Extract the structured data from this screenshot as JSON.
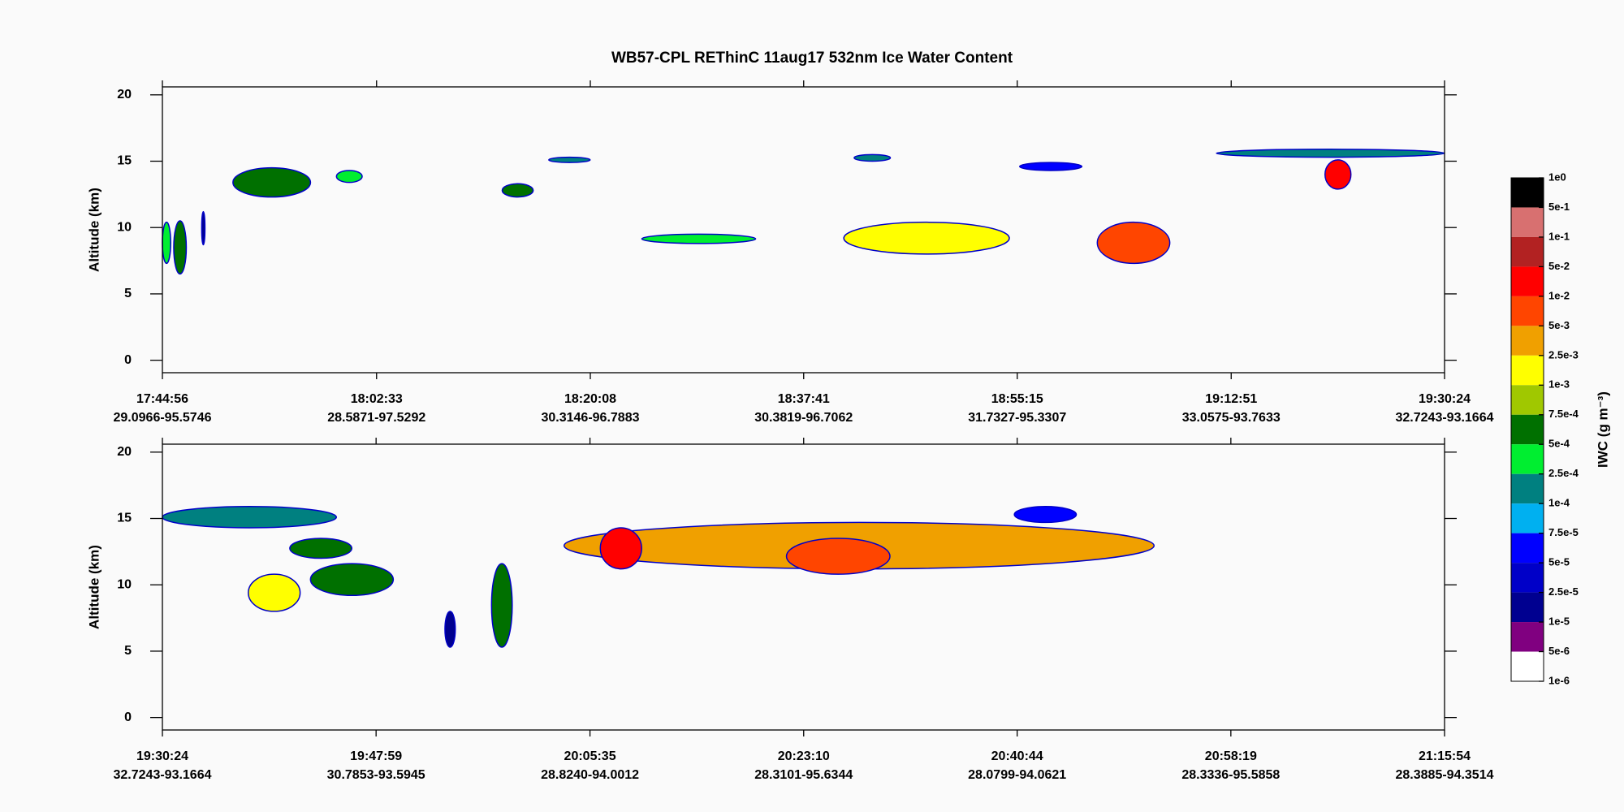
{
  "chart_data": [
    {
      "type": "curtain",
      "title": "WB57-CPL  REThinC  11aug17  532nm Ice Water Content",
      "ylabel": "Altitude (km)",
      "ylim": [
        -0.94,
        20.6
      ],
      "yticks": [
        0,
        5,
        10,
        15,
        20
      ],
      "xlim": [
        63896,
        70224
      ],
      "xticks": [
        {
          "value": 63896,
          "label": "17:44:56"
        },
        {
          "value": 64953,
          "label": "18:02:33"
        },
        {
          "value": 66008,
          "label": "18:20:08"
        },
        {
          "value": 67061,
          "label": "18:37:41"
        },
        {
          "value": 68115,
          "label": "18:55:15"
        },
        {
          "value": 69171,
          "label": "19:12:51"
        },
        {
          "value": 70224,
          "label": "19:30:24"
        }
      ],
      "xtick_sublabels": [
        "29.0966-95.5746",
        "28.5871-97.5292",
        "30.3146-96.7883",
        "30.3819-96.7062",
        "31.7327-95.3307",
        "33.0575-93.7633",
        "32.7243-93.1664"
      ],
      "patches": [
        {
          "x": [
            63896,
            63937
          ],
          "y": [
            7.3,
            10.4
          ],
          "iwc": 0.00025
        },
        {
          "x": [
            63952,
            64014
          ],
          "y": [
            6.5,
            10.5
          ],
          "iwc": 0.0005
        },
        {
          "x": [
            64090,
            64106
          ],
          "y": [
            8.7,
            11.2
          ],
          "iwc": 1e-05
        },
        {
          "x": [
            64244,
            64627
          ],
          "y": [
            12.3,
            14.5
          ],
          "iwc": 0.0005
        },
        {
          "x": [
            64755,
            64882
          ],
          "y": [
            13.4,
            14.3
          ],
          "iwc": 0.00025
        },
        {
          "x": [
            65573,
            65726
          ],
          "y": [
            12.3,
            13.3
          ],
          "iwc": 0.0005
        },
        {
          "x": [
            65803,
            66007
          ],
          "y": [
            14.9,
            15.3
          ],
          "iwc": 0.0001
        },
        {
          "x": [
            66262,
            66824
          ],
          "y": [
            8.8,
            9.5
          ],
          "iwc": 0.00025
        },
        {
          "x": [
            67259,
            68076
          ],
          "y": [
            8,
            10.4
          ],
          "iwc": 0.001
        },
        {
          "x": [
            67310,
            67489
          ],
          "y": [
            15,
            15.5
          ],
          "iwc": 0.0001
        },
        {
          "x": [
            68127,
            68434
          ],
          "y": [
            14.3,
            14.9
          ],
          "iwc": 5e-05
        },
        {
          "x": [
            68510,
            68868
          ],
          "y": [
            7.3,
            10.4
          ],
          "iwc": 0.005
        },
        {
          "x": [
            69098,
            70224
          ],
          "y": [
            15.3,
            15.9
          ],
          "iwc": 0.0001
        },
        {
          "x": [
            69634,
            69762
          ],
          "y": [
            12.9,
            15.1
          ],
          "iwc": 0.01
        }
      ]
    },
    {
      "type": "curtain",
      "ylabel": "Altitude (km)",
      "ylim": [
        -0.94,
        20.6
      ],
      "yticks": [
        0,
        5,
        10,
        15,
        20
      ],
      "xlim": [
        70224,
        76554
      ],
      "xticks": [
        {
          "value": 70224,
          "label": "19:30:24"
        },
        {
          "value": 71279,
          "label": "19:47:59"
        },
        {
          "value": 72335,
          "label": "20:05:35"
        },
        {
          "value": 73390,
          "label": "20:23:10"
        },
        {
          "value": 74444,
          "label": "20:40:44"
        },
        {
          "value": 75499,
          "label": "20:58:19"
        },
        {
          "value": 76554,
          "label": "21:15:54"
        }
      ],
      "xtick_sublabels": [
        "32.7243-93.1664",
        "30.7853-93.5945",
        "28.8240-94.0012",
        "28.3101-95.6344",
        "28.0799-94.0621",
        "28.3336-95.5858",
        "28.3885-94.3514"
      ],
      "patches": [
        {
          "x": [
            70224,
            71083
          ],
          "y": [
            14.3,
            15.9
          ],
          "iwc": 0.0001
        },
        {
          "x": [
            70853,
            71159
          ],
          "y": [
            12,
            13.5
          ],
          "iwc": 0.0005
        },
        {
          "x": [
            70648,
            70904
          ],
          "y": [
            8,
            10.8
          ],
          "iwc": 0.001
        },
        {
          "x": [
            70955,
            71364
          ],
          "y": [
            9.2,
            11.6
          ],
          "iwc": 0.0005
        },
        {
          "x": [
            71619,
            71670
          ],
          "y": [
            5.3,
            8
          ],
          "iwc": 1e-05
        },
        {
          "x": [
            71849,
            71951
          ],
          "y": [
            5.3,
            11.6
          ],
          "iwc": 0.0005
        },
        {
          "x": [
            72207,
            75120
          ],
          "y": [
            11.2,
            14.7
          ],
          "iwc": 0.0025
        },
        {
          "x": [
            72386,
            72590
          ],
          "y": [
            11.2,
            14.3
          ],
          "iwc": 0.01
        },
        {
          "x": [
            73305,
            73816
          ],
          "y": [
            10.8,
            13.5
          ],
          "iwc": 0.005
        },
        {
          "x": [
            74430,
            74736
          ],
          "y": [
            14.7,
            15.9
          ],
          "iwc": 5e-05
        }
      ]
    }
  ],
  "colorbar": {
    "label": "IWC (g m⁻³)",
    "levels": [
      {
        "value": 1,
        "label": "1e0"
      },
      {
        "value": 0.5,
        "label": "5e-1"
      },
      {
        "value": 0.1,
        "label": "1e-1"
      },
      {
        "value": 0.05,
        "label": "5e-2"
      },
      {
        "value": 0.01,
        "label": "1e-2"
      },
      {
        "value": 0.005,
        "label": "5e-3"
      },
      {
        "value": 0.0025,
        "label": "2.5e-3"
      },
      {
        "value": 0.001,
        "label": "1e-3"
      },
      {
        "value": 0.00075,
        "label": "7.5e-4"
      },
      {
        "value": 0.0005,
        "label": "5e-4"
      },
      {
        "value": 0.00025,
        "label": "2.5e-4"
      },
      {
        "value": 0.0001,
        "label": "1e-4"
      },
      {
        "value": 7.5e-05,
        "label": "7.5e-5"
      },
      {
        "value": 5e-05,
        "label": "5e-5"
      },
      {
        "value": 2.5e-05,
        "label": "2.5e-5"
      },
      {
        "value": 1e-05,
        "label": "1e-5"
      },
      {
        "value": 5e-06,
        "label": "5e-6"
      },
      {
        "value": 1e-06,
        "label": "1e-6"
      }
    ],
    "colors": [
      "#000000",
      "#d87070",
      "#b22222",
      "#ff0000",
      "#ff4500",
      "#f0a000",
      "#ffff00",
      "#a0c800",
      "#007000",
      "#00ee30",
      "#008080",
      "#00b0f0",
      "#0000ff",
      "#0000c8",
      "#000090",
      "#800080",
      "#ffffff"
    ]
  }
}
